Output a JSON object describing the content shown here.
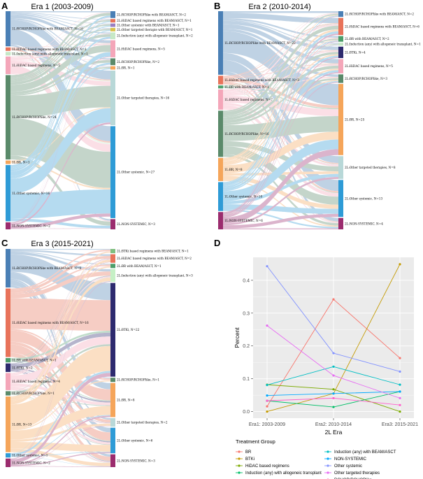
{
  "panels": [
    {
      "letter": "A",
      "title": "Era 1 (2003-2009)",
      "left_nodes": [
        {
          "label": "1L:RCHOP/RCHOPlike with BEAM/ASCT, N=10",
          "n": 10,
          "color": "#4a7fb5"
        },
        {
          "label": "1L:HiDAC based regimens with BEAM/ASCT, N=1",
          "n": 1,
          "color": "#e8735a"
        },
        {
          "label": "1L:Induction (any) with allogeneic transplant, N=1",
          "n": 1,
          "color": "#c6e8c6"
        },
        {
          "label": "1L:HiDAC based regimens, N=5",
          "n": 5,
          "color": "#f4a6b9"
        },
        {
          "label": "1L:RCHOP/RCHOPlike, N=24",
          "n": 24,
          "color": "#5a8a6a"
        },
        {
          "label": "1L:BR, N=1",
          "n": 1,
          "color": "#f5a55a"
        },
        {
          "label": "1L:Other systemic, N=16",
          "n": 16,
          "color": "#2e9bd6"
        },
        {
          "label": "1L:NON-SYSTEMIC, N=2",
          "n": 2,
          "color": "#9b2c6e"
        }
      ],
      "right_nodes": [
        {
          "label": "2L:RCHOP/RCHOPlike with BEAM/ASCT, N=2",
          "n": 2,
          "color": "#4a7fb5"
        },
        {
          "label": "2L:HiDAC based regimens with BEAM/ASCT, N=1",
          "n": 1,
          "color": "#e8735a"
        },
        {
          "label": "2L:Other systemic with BEAM/ASCT, N=1",
          "n": 1,
          "color": "#9a7fc2"
        },
        {
          "label": "2L:Other targeted therapie with BEAM/ASCT, N=1",
          "n": 1,
          "color": "#d9c24a"
        },
        {
          "label": "2L:Induction (any) with allogeneic transplant, N=2",
          "n": 2,
          "color": "#c6e8c6"
        },
        {
          "label": "2L:HiDAC based regimens, N=5",
          "n": 5,
          "color": "#f4a6b9"
        },
        {
          "label": "2L:RCHOP/RCHOPlike, N=2",
          "n": 2,
          "color": "#5a8a6a"
        },
        {
          "label": "2L:BR, N=1",
          "n": 1,
          "color": "#f5a55a"
        },
        {
          "label": "2L:Other targeted therapies, N=16",
          "n": 16,
          "color": "#b8d8d8"
        },
        {
          "label": "2L:Other systemic, N=27",
          "n": 27,
          "color": "#2e9bd6"
        },
        {
          "label": "2L:NON-SYSTEMIC, N=3",
          "n": 3,
          "color": "#9b2c6e"
        }
      ]
    },
    {
      "letter": "B",
      "title": "Era 2 (2010-2014)",
      "left_nodes": [
        {
          "label": "1L:RCHOP/RCHOPlike with BEAM/ASCT, N=22",
          "n": 22,
          "color": "#4a7fb5"
        },
        {
          "label": "1L:HiDAC based regimens with BEAM/ASCT, N=3",
          "n": 3,
          "color": "#e8735a"
        },
        {
          "label": "1L:BR with BEAM/ASCT, N=1",
          "n": 1,
          "color": "#4d9e6a"
        },
        {
          "label": "1L:HiDAC based regimens, N=7",
          "n": 7,
          "color": "#f4a6b9"
        },
        {
          "label": "1L:RCHOP/RCHOPlike, N=16",
          "n": 16,
          "color": "#5a8a6a"
        },
        {
          "label": "1L:BR, N=8",
          "n": 8,
          "color": "#f5a55a"
        },
        {
          "label": "1L:Other systemic, N=10",
          "n": 10,
          "color": "#2e9bd6"
        },
        {
          "label": "1L:NON-SYSTEMIC, N=6",
          "n": 6,
          "color": "#9b2c6e"
        }
      ],
      "right_nodes": [
        {
          "label": "2L:RCHOP/RCHOPlike with BEAM/ASCT, N=2",
          "n": 2,
          "color": "#4a7fb5"
        },
        {
          "label": "2L:HiDAC based regimens with BEAM/ASCT, N=6",
          "n": 6,
          "color": "#e8735a"
        },
        {
          "label": "2L:BR with BEAM/ASCT, N=2",
          "n": 2,
          "color": "#4d9e6a"
        },
        {
          "label": "2L:Induction (any) with allogeneic transplant, N=1",
          "n": 1,
          "color": "#c6e8c6"
        },
        {
          "label": "2L:BTKi, N=4",
          "n": 4,
          "color": "#2d2a6e"
        },
        {
          "label": "2L:HiDAC based regimens, N=5",
          "n": 5,
          "color": "#f4a6b9"
        },
        {
          "label": "2L:RCHOP/RCHOPlike, N=3",
          "n": 3,
          "color": "#5a8a6a"
        },
        {
          "label": "2L:BR, N=25",
          "n": 25,
          "color": "#f5a55a"
        },
        {
          "label": "2L:Other targeted therapies, N=8",
          "n": 8,
          "color": "#b8d8d8"
        },
        {
          "label": "2L:Other systemic, N=13",
          "n": 13,
          "color": "#2e9bd6"
        },
        {
          "label": "2L:NON-SYSTEMIC, N=4",
          "n": 4,
          "color": "#9b2c6e"
        }
      ]
    },
    {
      "letter": "C",
      "title": "Era 3 (2015-2021)",
      "left_nodes": [
        {
          "label": "1L:RCHOP/RCHOPlike with BEAM/ASCT, N=9",
          "n": 9,
          "color": "#4a7fb5"
        },
        {
          "label": "1L:HiDAC based regimens with BEAM/ASCT, N=16",
          "n": 16,
          "color": "#e8735a"
        },
        {
          "label": "1L:BR with BEAM/ASCT, N=1",
          "n": 1,
          "color": "#4d9e6a"
        },
        {
          "label": "1L:BTKi, N=2",
          "n": 2,
          "color": "#2d2a6e"
        },
        {
          "label": "1L:HiDAC based regimens, N=4",
          "n": 4,
          "color": "#f4a6b9"
        },
        {
          "label": "1L:RCHOP/RCHOPlike, N=1",
          "n": 1,
          "color": "#5a8a6a"
        },
        {
          "label": "1L:BR, N=13",
          "n": 13,
          "color": "#f5a55a"
        },
        {
          "label": "1L:Other systemic, N=1",
          "n": 1,
          "color": "#2e9bd6"
        },
        {
          "label": "1L:NON-SYSTEMIC, N=2",
          "n": 2,
          "color": "#9b2c6e"
        }
      ],
      "right_nodes": [
        {
          "label": "2L:BTKi based regimens with BEAM/ASCT, N=1",
          "n": 1,
          "color": "#7fbf7f"
        },
        {
          "label": "2L:HiDAC based regimens with BEAM/ASCT, N=2",
          "n": 2,
          "color": "#e8735a"
        },
        {
          "label": "2L:BR with BEAM/ASCT, N=1",
          "n": 1,
          "color": "#4d9e6a"
        },
        {
          "label": "2L:Induction (any) with allogeneic transplant, N=3",
          "n": 3,
          "color": "#c6f0c6"
        },
        {
          "label": "2L:BTKi, N=22",
          "n": 22,
          "color": "#2d2a6e"
        },
        {
          "label": "2L:RCHOP/RCHOPlike, N=1",
          "n": 1,
          "color": "#5a8a6a"
        },
        {
          "label": "2L:BR, N=8",
          "n": 8,
          "color": "#f5a55a"
        },
        {
          "label": "2L:Other targeted therapies, N=2",
          "n": 2,
          "color": "#b8d8d8"
        },
        {
          "label": "2L:Other systemic, N=6",
          "n": 6,
          "color": "#2e9bd6"
        },
        {
          "label": "2L:NON-SYSTEMIC, N=3",
          "n": 3,
          "color": "#9b2c6e"
        }
      ]
    }
  ],
  "chart_data": {
    "type": "line",
    "letter": "D",
    "categories": [
      "Era1: 2003-2009",
      "Era2: 2010-2014",
      "Era3: 2015-2021"
    ],
    "xlabel": "2L Era",
    "ylabel": "Percent",
    "ylim": [
      -0.02,
      0.47
    ],
    "yticks": [
      0.0,
      0.1,
      0.2,
      0.3,
      0.4
    ],
    "ytick_labels": [
      "0.0",
      "0.1",
      "0.2",
      "0.3",
      "0.4"
    ],
    "grid": true,
    "legend_title": "Treatment Group",
    "legend_position": "bottom",
    "series": [
      {
        "name": "BR",
        "color": "#f8766d",
        "values": [
          0.016,
          0.342,
          0.163
        ]
      },
      {
        "name": "BTKi",
        "color": "#c49a00",
        "values": [
          0.0,
          0.055,
          0.449
        ]
      },
      {
        "name": "HiDAC based regimens",
        "color": "#7caa00",
        "values": [
          0.082,
          0.068,
          0.0
        ]
      },
      {
        "name": "Induction (any) with allogeneic transplant",
        "color": "#00be67",
        "values": [
          0.033,
          0.014,
          0.061
        ]
      },
      {
        "name": "Induction (any) with BEAM/ASCT",
        "color": "#00bfc4",
        "values": [
          0.081,
          0.137,
          0.082
        ]
      },
      {
        "name": "NON-SYSTEMIC",
        "color": "#00a9ff",
        "values": [
          0.049,
          0.055,
          0.061
        ]
      },
      {
        "name": "Other systemic",
        "color": "#8494ff",
        "values": [
          0.443,
          0.178,
          0.122
        ]
      },
      {
        "name": "Other targeted therapies",
        "color": "#e76bf3",
        "values": [
          0.262,
          0.11,
          0.041
        ]
      },
      {
        "name": "RCHOP/RCHOPlike",
        "color": "#ff61cc",
        "values": [
          0.033,
          0.041,
          0.02
        ]
      }
    ]
  }
}
